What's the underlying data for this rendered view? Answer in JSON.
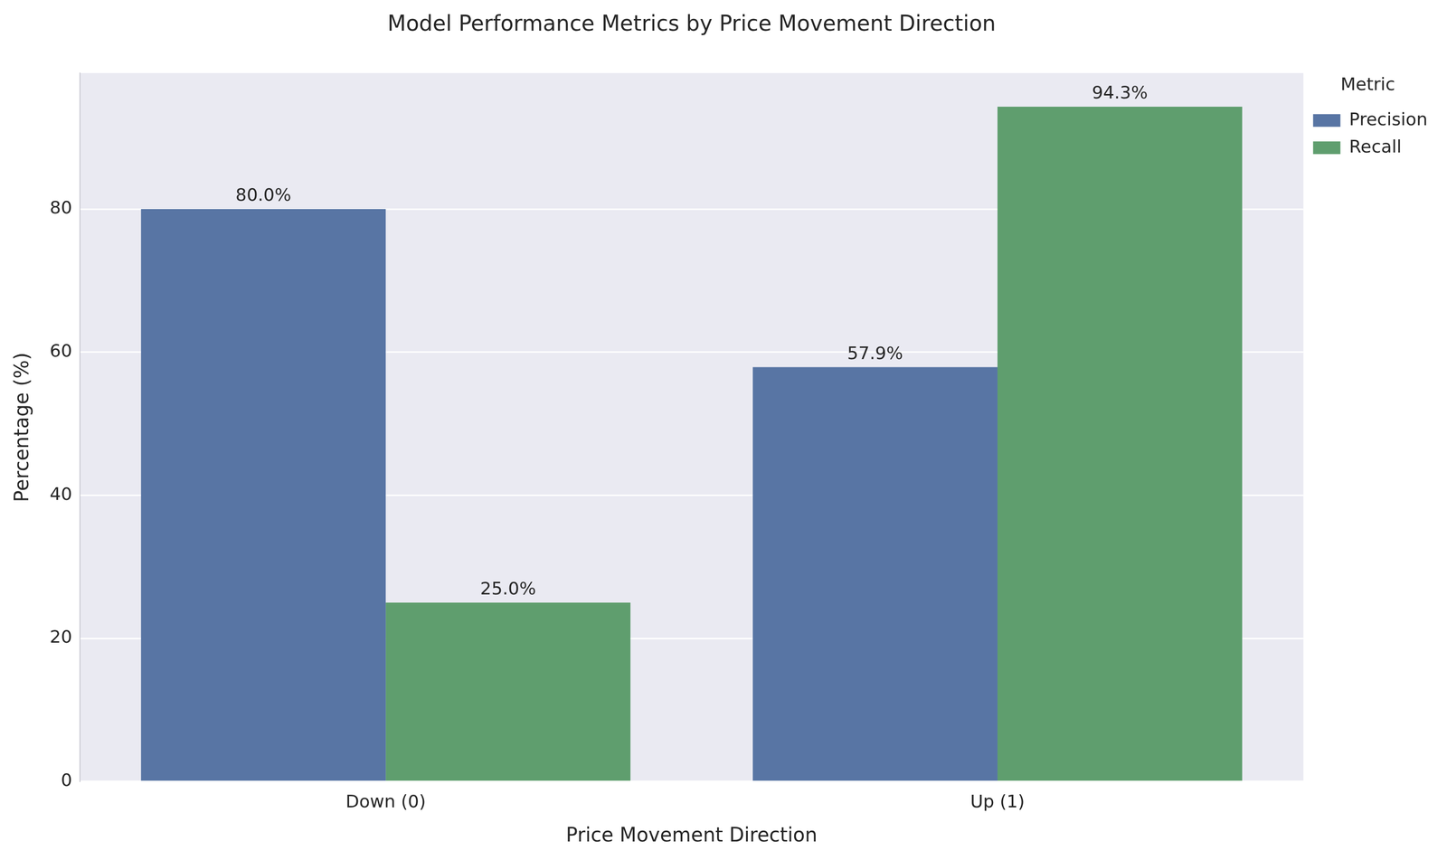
{
  "chart_data": {
    "type": "bar",
    "title": "Model Performance Metrics by Price Movement Direction",
    "x_label": "Price Movement Direction",
    "y_label": "Percentage (%)",
    "categories": [
      "Down (0)",
      "Up (1)"
    ],
    "series": [
      {
        "name": "Precision",
        "color": "#5875a4",
        "values": [
          80.0,
          57.9
        ],
        "value_labels": [
          "80.0%",
          "57.9%"
        ]
      },
      {
        "name": "Recall",
        "color": "#5f9e6e",
        "values": [
          25.0,
          94.3
        ],
        "value_labels": [
          "25.0%",
          "94.3%"
        ]
      }
    ],
    "ylim": [
      0,
      99
    ],
    "yticks": [
      0,
      20,
      40,
      60,
      80
    ],
    "grid": true,
    "data_labels": true,
    "legend": "upper right",
    "legend_title": "Metric"
  }
}
